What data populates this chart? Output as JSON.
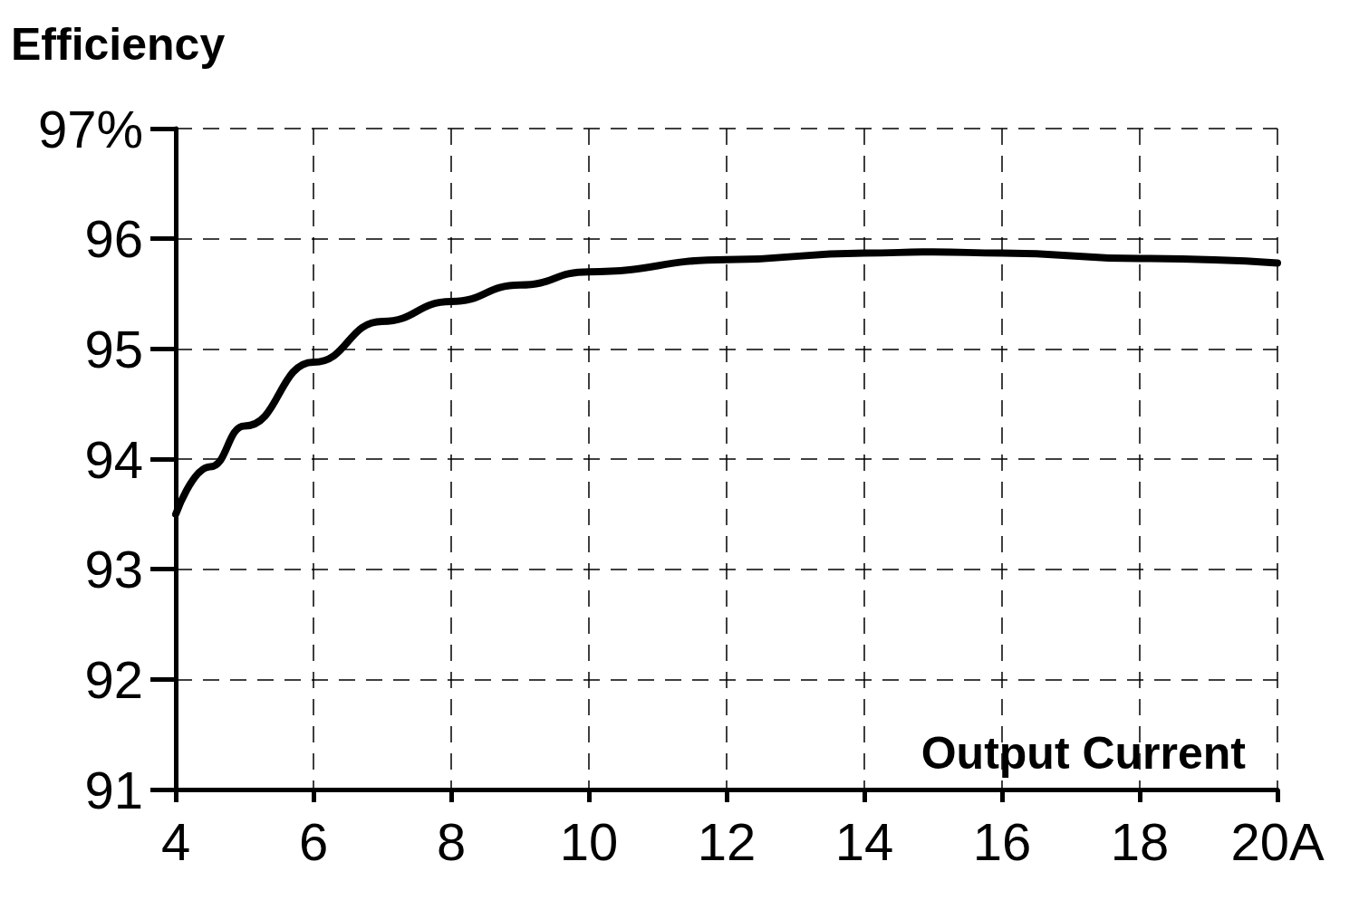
{
  "chart_data": {
    "type": "line",
    "xlabel": "Output Current",
    "ylabel": "Efficiency",
    "x": [
      4,
      4.5,
      5,
      6,
      7,
      8,
      9,
      10,
      12,
      14,
      15,
      16,
      18,
      20
    ],
    "series": [
      {
        "color": "#000000",
        "values": [
          93.5,
          93.93,
          94.3,
          94.88,
          95.25,
          95.43,
          95.58,
          95.7,
          95.81,
          95.87,
          95.88,
          95.87,
          95.82,
          95.78
        ]
      }
    ],
    "xlim": [
      4,
      20
    ],
    "xticks": [
      4,
      6,
      8,
      10,
      12,
      14,
      16,
      18,
      {
        "value": 20,
        "label": "20A"
      }
    ],
    "ylim": [
      91,
      97
    ],
    "yticks": [
      91,
      92,
      93,
      94,
      95,
      96,
      {
        "value": 97,
        "label": "97%"
      }
    ],
    "grid": true,
    "line_style": "solid"
  }
}
